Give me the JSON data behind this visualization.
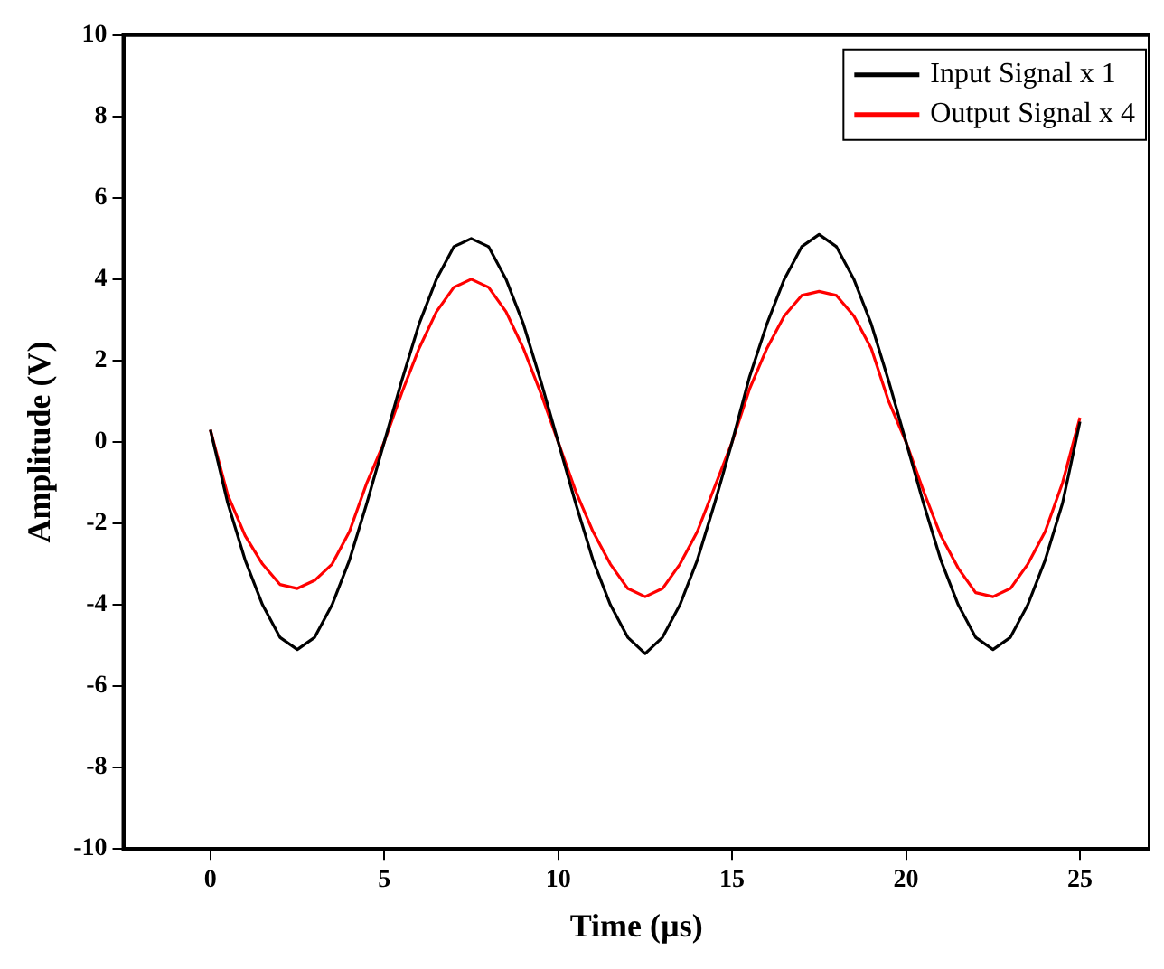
{
  "chart_data": {
    "type": "line",
    "xlabel": "Time (µs)",
    "ylabel": "Amplitude (V)",
    "x": [
      0,
      0.5,
      1,
      1.5,
      2,
      2.5,
      3,
      3.5,
      4,
      4.5,
      5,
      5.5,
      6,
      6.5,
      7,
      7.5,
      8,
      8.5,
      9,
      9.5,
      10,
      10.5,
      11,
      11.5,
      12,
      12.5,
      13,
      13.5,
      14,
      14.5,
      15,
      15.5,
      16,
      16.5,
      17,
      17.5,
      18,
      18.5,
      19,
      19.5,
      20,
      20.5,
      21,
      21.5,
      22,
      22.5,
      23,
      23.5,
      24,
      24.5,
      25
    ],
    "series": [
      {
        "name": "Input Signal x 1",
        "color": "#000000",
        "values": [
          0.3,
          -1.5,
          -2.9,
          -4.0,
          -4.8,
          -5.1,
          -4.8,
          -4.0,
          -2.9,
          -1.5,
          0,
          1.5,
          2.9,
          4.0,
          4.8,
          5.0,
          4.8,
          4.0,
          2.9,
          1.5,
          0,
          -1.5,
          -2.9,
          -4.0,
          -4.8,
          -5.2,
          -4.8,
          -4.0,
          -2.9,
          -1.5,
          0,
          1.6,
          2.9,
          4.0,
          4.8,
          5.1,
          4.8,
          4.0,
          2.9,
          1.5,
          0,
          -1.5,
          -2.9,
          -4.0,
          -4.8,
          -5.1,
          -4.8,
          -4.0,
          -2.9,
          -1.5,
          0.5
        ]
      },
      {
        "name": "Output Signal x 4",
        "color": "#ff0000",
        "values": [
          0.3,
          -1.3,
          -2.3,
          -3.0,
          -3.5,
          -3.6,
          -3.4,
          -3.0,
          -2.2,
          -1.0,
          0,
          1.2,
          2.3,
          3.2,
          3.8,
          4.0,
          3.8,
          3.2,
          2.3,
          1.2,
          0,
          -1.2,
          -2.2,
          -3.0,
          -3.6,
          -3.8,
          -3.6,
          -3.0,
          -2.2,
          -1.1,
          0,
          1.3,
          2.3,
          3.1,
          3.6,
          3.7,
          3.6,
          3.1,
          2.3,
          1.0,
          0,
          -1.2,
          -2.3,
          -3.1,
          -3.7,
          -3.8,
          -3.6,
          -3.0,
          -2.2,
          -1.0,
          0.6
        ]
      }
    ],
    "xlim": [
      -2.5,
      27
    ],
    "xticks": [
      0,
      5,
      10,
      15,
      20,
      25
    ],
    "ylim": [
      -10,
      10
    ],
    "yticks": [
      -10,
      -8,
      -6,
      -4,
      -2,
      0,
      2,
      4,
      6,
      8,
      10
    ],
    "grid": false,
    "legend": "top right",
    "marker": "none",
    "line_style": "solid"
  }
}
